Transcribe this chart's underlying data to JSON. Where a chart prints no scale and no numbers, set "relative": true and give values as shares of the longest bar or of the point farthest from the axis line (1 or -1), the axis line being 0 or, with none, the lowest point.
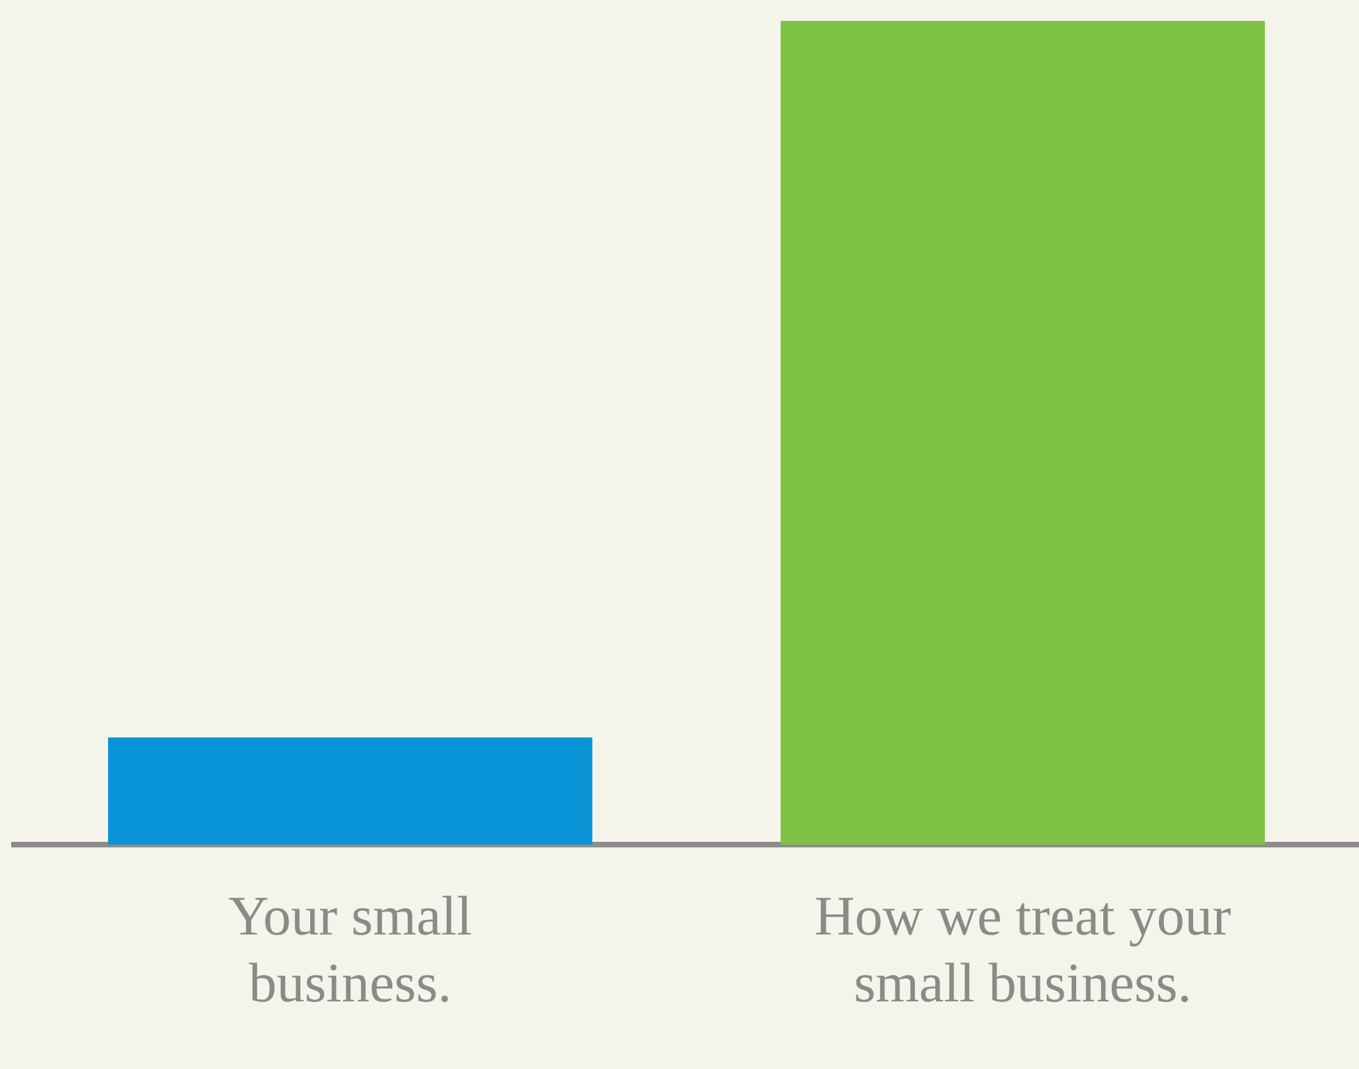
{
  "chart_data": {
    "type": "bar",
    "relative": true,
    "categories": [
      "Your small business.",
      "How we treat your small business."
    ],
    "values": [
      0.13,
      1
    ],
    "colors": [
      "#0894d6",
      "#7dc242"
    ],
    "grid": false,
    "legend": false
  }
}
